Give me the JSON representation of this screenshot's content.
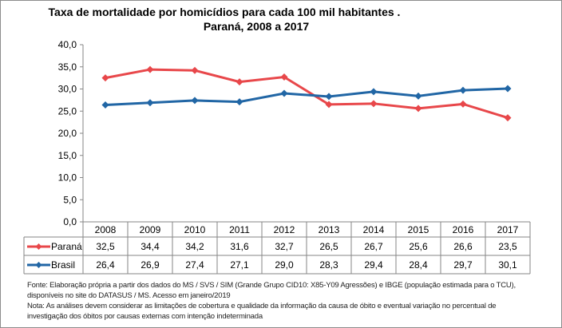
{
  "chart_data": {
    "type": "line",
    "title": [
      "Taxa de mortalidade por homicídios para cada 100 mil habitantes .",
      "Paraná, 2008 a 2017"
    ],
    "categories": [
      "2008",
      "2009",
      "2010",
      "2011",
      "2012",
      "2013",
      "2014",
      "2015",
      "2016",
      "2017"
    ],
    "ylim": [
      0,
      40
    ],
    "yticks": [
      "0,0",
      "5,0",
      "10,0",
      "15,0",
      "20,0",
      "25,0",
      "30,0",
      "35,0",
      "40,0"
    ],
    "series": [
      {
        "name": "Paraná",
        "color": "#e8474a",
        "values": [
          32.5,
          34.4,
          34.2,
          31.6,
          32.7,
          26.5,
          26.7,
          25.6,
          26.6,
          23.5
        ],
        "labels": [
          "32,5",
          "34,4",
          "34,2",
          "31,6",
          "32,7",
          "26,5",
          "26,7",
          "25,6",
          "26,6",
          "23,5"
        ]
      },
      {
        "name": "Brasil",
        "color": "#2166a5",
        "values": [
          26.4,
          26.9,
          27.4,
          27.1,
          29.0,
          28.3,
          29.4,
          28.4,
          29.7,
          30.1
        ],
        "labels": [
          "26,4",
          "26,9",
          "27,4",
          "27,1",
          "29,0",
          "28,3",
          "29,4",
          "28,4",
          "29,7",
          "30,1"
        ]
      }
    ]
  },
  "notes": [
    "Fonte: Elaboração própria a partir dos dados do MS / SVS / SIM (Grande Grupo CID10: X85-Y09 Agressões) e IBGE (população estimada para o TCU),",
    "disponíveis no site do DATASUS / MS. Acesso em janeiro/2019",
    "Nota:  As análises devem considerar as limitações de cobertura e qualidade da informação da causa de óbito e eventual variação no percentual de",
    "investigação dos óbitos por causas externas com intenção  indeterminada"
  ]
}
